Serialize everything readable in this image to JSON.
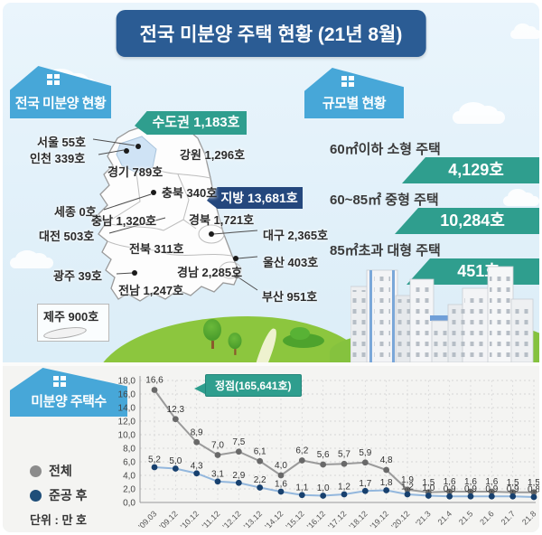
{
  "title": "전국 미분양 주택 현황 (21년 8월)",
  "sections": {
    "map_header": "전국 미분양 현황",
    "size_header": "규모별 현황",
    "chart_header": "미분양 주택수"
  },
  "map": {
    "sudogwon_badge": "수도권 1,183호",
    "jibang_badge": "지방 13,681호",
    "regions": {
      "seoul": "서울 55호",
      "incheon": "인천 339호",
      "gyeonggi": "경기 789호",
      "gangwon": "강원 1,296호",
      "chungbuk": "충북 340호",
      "sejong": "세종 0호",
      "chungnam": "충남 1,320호",
      "daejeon": "대전 503호",
      "gyeongbuk": "경북 1,721호",
      "daegu": "대구 2,365호",
      "jeonbuk": "전북 311호",
      "ulsan": "울산 403호",
      "gyeongnam": "경남 2,285호",
      "gwangju": "광주 39호",
      "jeonnam": "전남 1,247호",
      "busan": "부산 951호",
      "jeju": "제주 900호"
    }
  },
  "size_panel": {
    "items": [
      {
        "label": "60㎡이하 소형 주택",
        "value": "4,129호"
      },
      {
        "label": "60~85㎡ 중형 주택",
        "value": "10,284호"
      },
      {
        "label": "85㎡초과 대형 주택",
        "value": "451호"
      }
    ]
  },
  "legend": {
    "series1": "전체",
    "series2": "준공 후",
    "unit": "단위 : 만 호"
  },
  "colors": {
    "title_bg": "#2b5c94",
    "banner_blue": "#47a7d8",
    "badge_teal": "#2f9e8e",
    "badge_navy": "#24477d",
    "sudogwon_fill": "#cfe3f5",
    "series_total": "#9a9a9a",
    "series_total_dot": "#696969",
    "series_after": "#93b7dd",
    "series_after_dot": "#17406e"
  },
  "chart_data": {
    "type": "line",
    "title": "미분양 주택수",
    "x": [
      "'09.03",
      "'09.12",
      "'10.12",
      "'11.12",
      "'12.12",
      "'13.12",
      "'14.12",
      "'15.12",
      "'16.12",
      "'17.12",
      "'18.12",
      "'19.12",
      "'20.12",
      "'21.3",
      "21.4",
      "21.5",
      "21.6",
      "21.7",
      "21.8"
    ],
    "series": [
      {
        "name": "전체",
        "values": [
          16.6,
          12.3,
          8.9,
          7.0,
          7.5,
          6.1,
          4.0,
          6.2,
          5.6,
          5.7,
          5.9,
          4.8,
          1.9,
          1.5,
          1.6,
          1.6,
          1.6,
          1.5,
          1.5
        ]
      },
      {
        "name": "준공 후",
        "values": [
          5.2,
          5.0,
          4.3,
          3.1,
          2.9,
          2.2,
          1.6,
          1.1,
          1.0,
          1.2,
          1.7,
          1.8,
          1.2,
          1.0,
          0.9,
          0.9,
          0.9,
          0.9,
          0.8
        ]
      }
    ],
    "ylim": [
      0,
      18
    ],
    "ytick_step": 2,
    "grid": true,
    "legend_position": "left",
    "annotation": "정점(165,641호)",
    "unit_label": "단위 : 만 호",
    "decimal_separator": ","
  }
}
